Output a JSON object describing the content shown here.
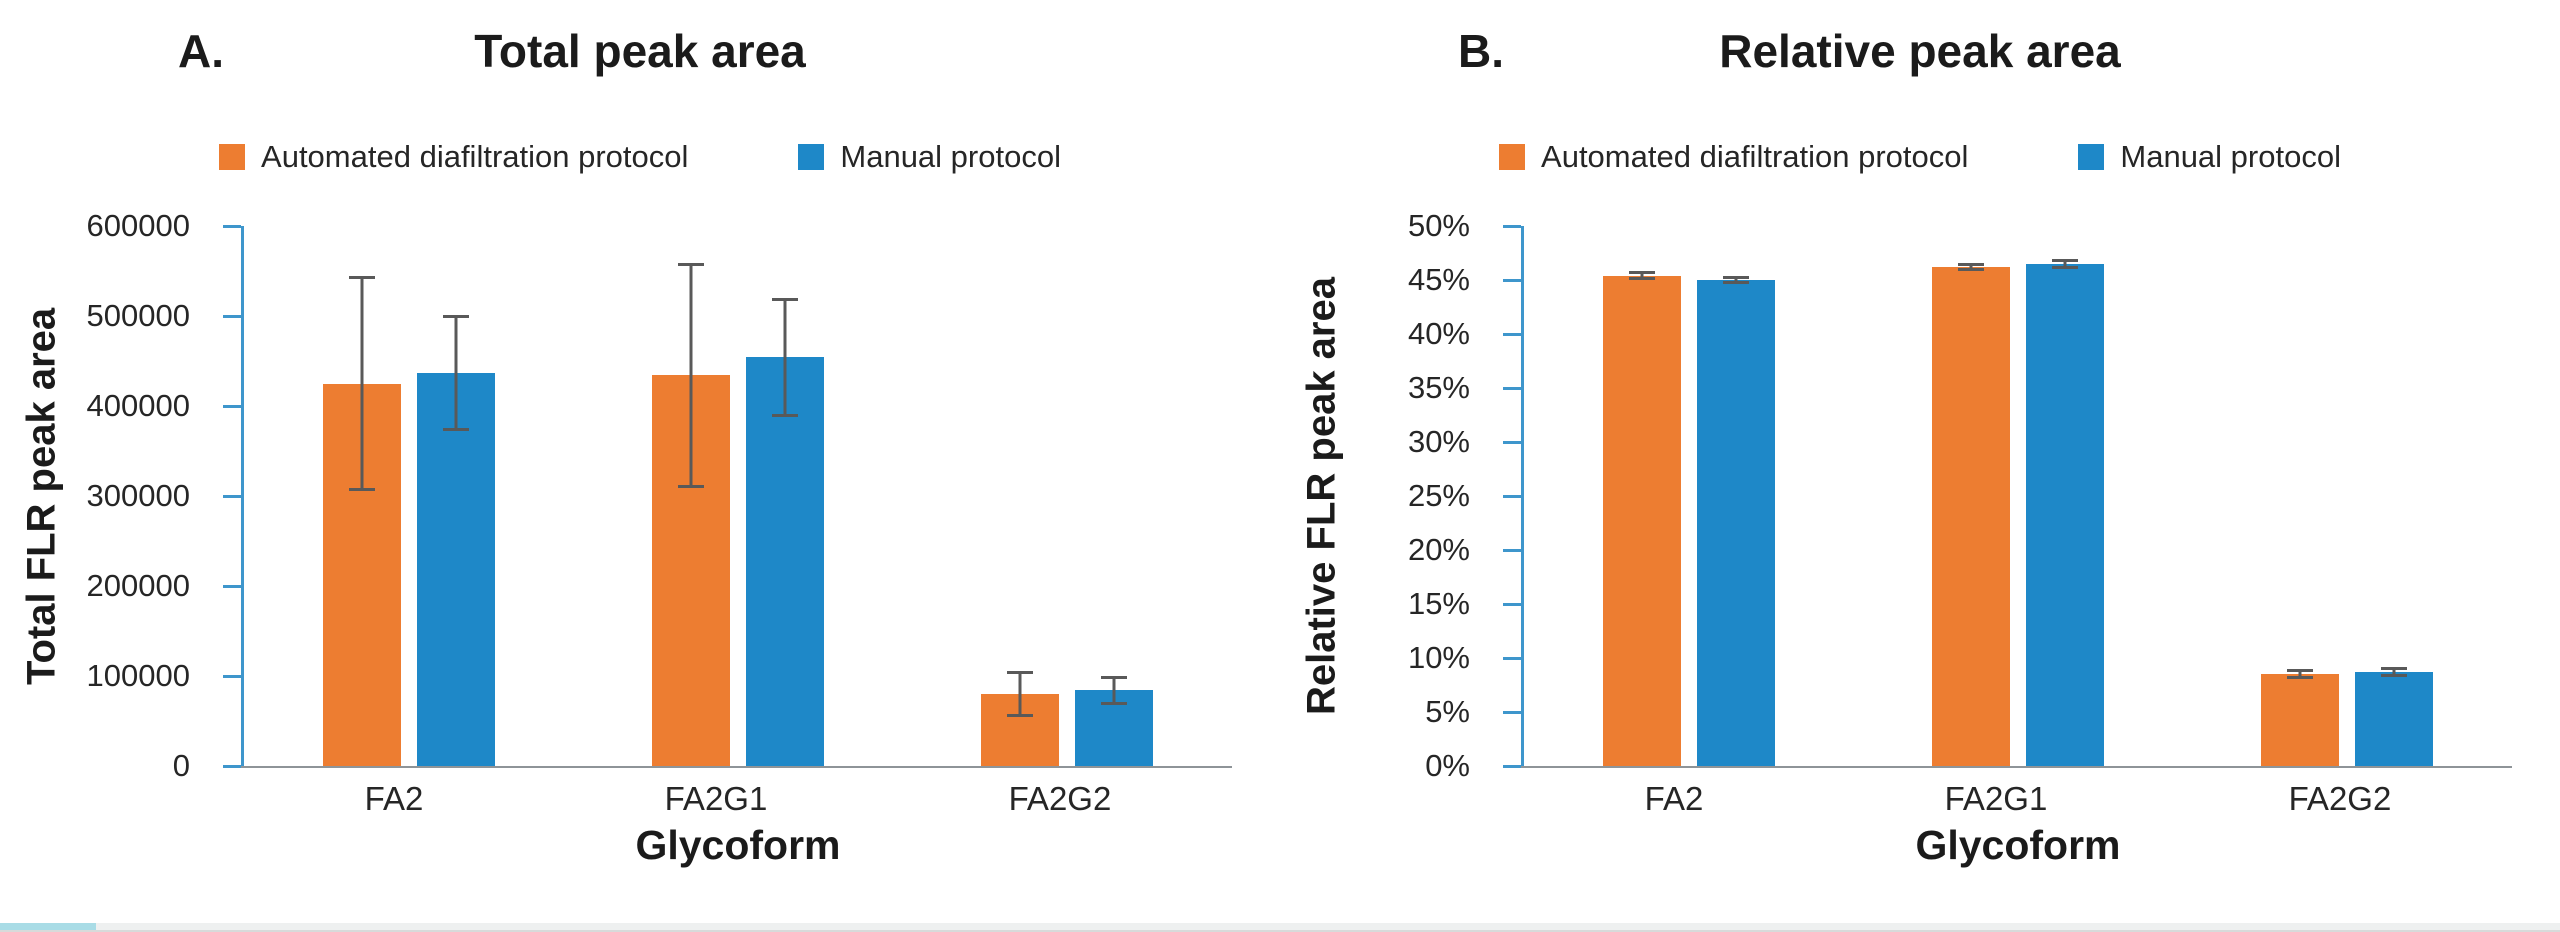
{
  "style_colors": {
    "series_automated": "#ED7D31",
    "series_manual": "#1E88C8",
    "y_axis_blue": "#3E96CC",
    "x_axis_gray": "#8E9498",
    "error_bar_gray": "#595959"
  },
  "chart_data": [
    {
      "type": "bar",
      "panel_label": "A.",
      "title": "Total peak area",
      "xlabel": "Glycoform",
      "ylabel": "Total FLR peak area",
      "categories": [
        "FA2",
        "FA2G1",
        "FA2G2"
      ],
      "series": [
        {
          "name": "Automated diafiltration protocol",
          "color": "#ED7D31",
          "values": [
            425000,
            434000,
            80000
          ],
          "errors": [
            118000,
            123000,
            24000
          ]
        },
        {
          "name": "Manual protocol",
          "color": "#1E88C8",
          "values": [
            437000,
            454000,
            84000
          ],
          "errors": [
            63000,
            64000,
            14000
          ]
        }
      ],
      "ylim": [
        0,
        600000
      ],
      "ytick_step": 100000,
      "ytick_labels": [
        "0",
        "100000",
        "200000",
        "300000",
        "400000",
        "500000",
        "600000"
      ],
      "grid": false,
      "legend_position": "top"
    },
    {
      "type": "bar",
      "panel_label": "B.",
      "title": "Relative peak area",
      "xlabel": "Glycoform",
      "ylabel": "Relative FLR peak area",
      "categories": [
        "FA2",
        "FA2G1",
        "FA2G2"
      ],
      "series": [
        {
          "name": "Automated diafiltration protocol",
          "color": "#ED7D31",
          "values": [
            45.4,
            46.2,
            8.5
          ],
          "errors": [
            0.3,
            0.2,
            0.3
          ]
        },
        {
          "name": "Manual protocol",
          "color": "#1E88C8",
          "values": [
            45.0,
            46.5,
            8.7
          ],
          "errors": [
            0.2,
            0.3,
            0.35
          ]
        }
      ],
      "ylim": [
        0,
        50
      ],
      "ytick_step": 5,
      "ytick_labels": [
        "0%",
        "5%",
        "10%",
        "15%",
        "20%",
        "25%",
        "30%",
        "35%",
        "40%",
        "45%",
        "50%"
      ],
      "grid": false,
      "legend_position": "top"
    }
  ]
}
